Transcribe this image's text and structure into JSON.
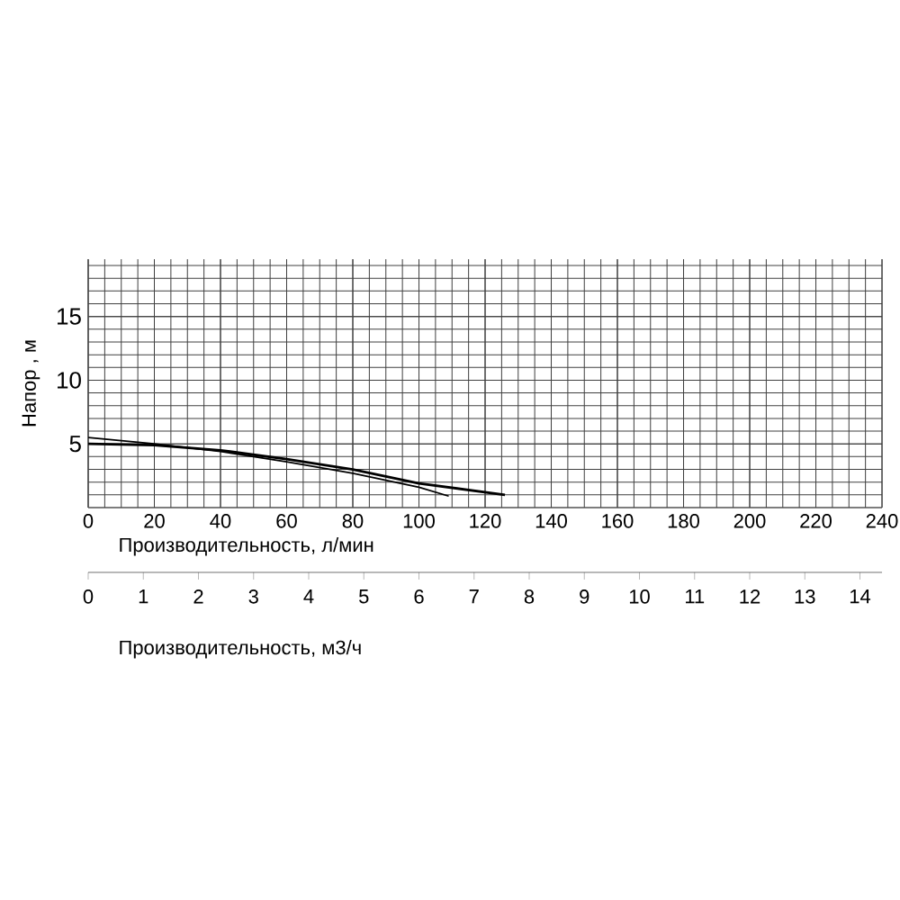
{
  "chart_data": {
    "type": "line",
    "xlabel": "Производительность, л/мин",
    "ylabel": "Напор , м",
    "x2label": "Производительность, м3/ч",
    "xlim": [
      0,
      240
    ],
    "xticks": [
      0,
      20,
      40,
      60,
      80,
      100,
      120,
      140,
      160,
      180,
      200,
      220,
      240
    ],
    "ylim": [
      0,
      19.5
    ],
    "yticks": [
      5,
      10,
      15
    ],
    "x2lim": [
      0,
      14.4
    ],
    "x2ticks": [
      0,
      1,
      2,
      3,
      4,
      5,
      6,
      7,
      8,
      9,
      10,
      11,
      12,
      13,
      14
    ],
    "grid": true,
    "marker": "none",
    "line_style": "solid",
    "series": [
      {
        "color": "#000000",
        "x": [
          0,
          20,
          40,
          60,
          80,
          100,
          126
        ],
        "values": [
          5.0,
          4.9,
          4.5,
          3.8,
          3.0,
          1.9,
          1.0
        ]
      },
      {
        "color": "#000000",
        "x": [
          0,
          20,
          40,
          60,
          80,
          100,
          109
        ],
        "values": [
          5.5,
          5.0,
          4.4,
          3.6,
          2.7,
          1.6,
          0.9
        ]
      }
    ]
  }
}
